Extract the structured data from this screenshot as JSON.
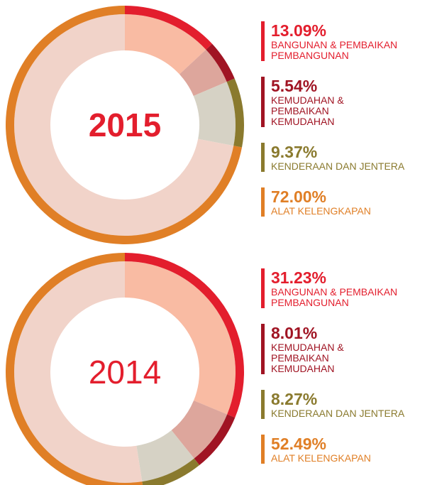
{
  "chart_data": [
    {
      "type": "pie",
      "title": "2015",
      "categories": [
        "BANGUNAN & PEMBAIKAN\nPEMBANGUNAN",
        "KEMUDAHAN &\nPEMBAIKAN\nKEMUDAHAN",
        "KENDERAAN DAN JENTERA",
        "ALAT KELENGKAPAN"
      ],
      "values": [
        13.09,
        5.54,
        9.37,
        72.0
      ],
      "value_labels": [
        "13.09%",
        "5.54%",
        "9.37%",
        "72.00%"
      ],
      "colors": [
        "#e31e2d",
        "#a01423",
        "#8a7a2e",
        "#e07f26"
      ],
      "light_colors": [
        "#f9bba3",
        "#dda69c",
        "#d6d2c5",
        "#f1d3c9"
      ]
    },
    {
      "type": "pie",
      "title": "2014",
      "categories": [
        "BANGUNAN & PEMBAIKAN\nPEMBANGUNAN",
        "KEMUDAHAN &\nPEMBAIKAN\nKEMUDAHAN",
        "KENDERAAN DAN JENTERA",
        "ALAT KELENGKAPAN"
      ],
      "values": [
        31.23,
        8.01,
        8.27,
        52.49
      ],
      "value_labels": [
        "31.23%",
        "8.01%",
        "8.27%",
        "52.49%"
      ],
      "colors": [
        "#e31e2d",
        "#a01423",
        "#8a7a2e",
        "#e07f26"
      ],
      "light_colors": [
        "#f9bba3",
        "#dda69c",
        "#d6d2c5",
        "#f1d3c9"
      ]
    }
  ]
}
